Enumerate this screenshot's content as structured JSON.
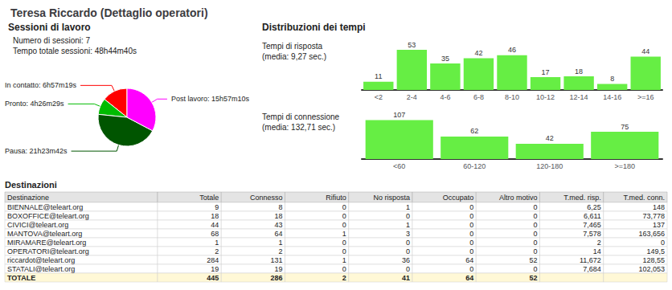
{
  "title": "Teresa Riccardo (Dettaglio operatori)",
  "chart_data": [
    {
      "type": "pie",
      "title": "Sessioni di lavoro",
      "annotations": [
        "Numero di sessioni: 7",
        "Tempo totale sessioni: 48h44m40s"
      ],
      "categories": [
        "In contatto: 6h57m19s",
        "Pronto: 4h26m29s",
        "Pausa: 21h23m42s",
        "Post lavoro: 15h57m10s"
      ],
      "values": [
        6.9553,
        4.4414,
        21.395,
        15.9528
      ],
      "colors": [
        "#ff0000",
        "#00bb00",
        "#005500",
        "#ff00ff"
      ]
    },
    {
      "type": "bar",
      "title": "Tempi di risposta",
      "subtitle": "(media: 9,27 sec.)",
      "annotations": [
        "Distribuzioni dei tempi"
      ],
      "categories": [
        "<2",
        "2-4",
        "4-6",
        "6-8",
        "8-10",
        "10-12",
        "12-14",
        "14-16",
        ">=16"
      ],
      "values": [
        11,
        53,
        35,
        42,
        46,
        17,
        18,
        8,
        44
      ],
      "color": "#66ee44",
      "ylim": [
        0,
        68
      ],
      "yticks": [],
      "grid": false,
      "data_labels": true,
      "tick_labels": "x"
    },
    {
      "type": "bar",
      "title": "Tempi di connessione",
      "subtitle": "(media: 132,71 sec.)",
      "categories": [
        "<60",
        "60-120",
        "120-180",
        ">=180"
      ],
      "values": [
        107,
        62,
        42,
        75
      ],
      "color": "#66ee44",
      "ylim": [
        0,
        128
      ],
      "yticks": [],
      "grid": false,
      "data_labels": true,
      "tick_labels": "x"
    },
    {
      "type": "table",
      "title": "Destinazioni",
      "columns": [
        "Destinazione",
        "Totale",
        "Connesso",
        "Rifiuto",
        "No risposta",
        "Occupato",
        "Altro motivo",
        "T.med. risp.",
        "T.med. conn."
      ],
      "rows": [
        [
          "BIENNALE@teleart.org",
          "9",
          "8",
          "0",
          "1",
          "0",
          "0",
          "6,25",
          "148"
        ],
        [
          "BOXOFFICE@teleart.org",
          "18",
          "18",
          "0",
          "0",
          "0",
          "0",
          "6,611",
          "73,778"
        ],
        [
          "CIVICI@teleart.org",
          "44",
          "43",
          "0",
          "1",
          "0",
          "0",
          "7,465",
          "137"
        ],
        [
          "MANTOVA@teleart.org",
          "68",
          "64",
          "1",
          "3",
          "0",
          "0",
          "7,578",
          "163,656"
        ],
        [
          "MIRAMARE@teleart.org",
          "1",
          "1",
          "0",
          "0",
          "0",
          "0",
          "2",
          "0"
        ],
        [
          "OPERATORI@teleart.org",
          "2",
          "2",
          "0",
          "0",
          "0",
          "0",
          "14",
          "149,5"
        ],
        [
          "riccardot@teleart.org",
          "284",
          "131",
          "1",
          "36",
          "64",
          "52",
          "11,672",
          "128,55"
        ],
        [
          "STATALI@teleart.org",
          "19",
          "19",
          "0",
          "0",
          "0",
          "0",
          "7,684",
          "102,053"
        ],
        [
          "TOTALE",
          "445",
          "286",
          "2",
          "41",
          "64",
          "52",
          null,
          null
        ]
      ]
    }
  ]
}
